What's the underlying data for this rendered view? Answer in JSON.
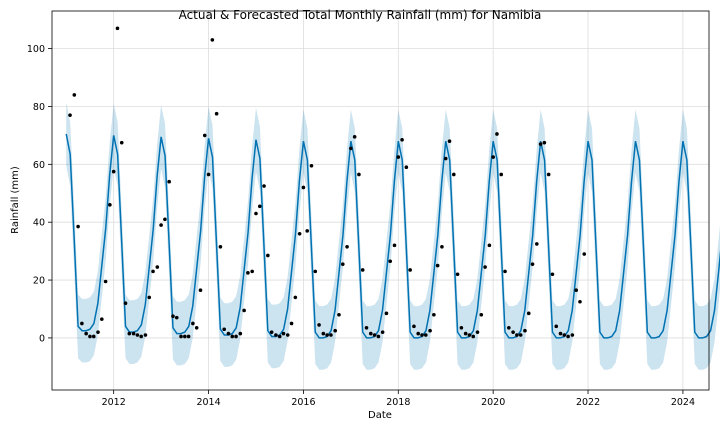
{
  "chart_data": {
    "type": "line",
    "title": "Actual & Forecasted Total Monthly Rainfall (mm) for Namibia",
    "xlabel": "Date",
    "ylabel": "Rainfall (mm)",
    "xlim": [
      2010.7,
      2024.55
    ],
    "ylim": [
      -18,
      113
    ],
    "x_ticks": [
      2012,
      2014,
      2016,
      2018,
      2020,
      2022,
      2024
    ],
    "y_ticks": [
      0,
      20,
      40,
      60,
      80,
      100
    ],
    "grid": true,
    "legend": "none",
    "colors": {
      "forecast": "#0072B2",
      "actual": "#000000"
    },
    "forecast_x_start": 2011.0,
    "forecast_x_step": 0.0833333,
    "forecast_yhat": [
      70.5,
      63.5,
      34.5,
      4,
      2.5,
      2.5,
      3,
      5,
      12,
      25,
      38,
      56.5,
      70,
      63.5,
      34,
      4,
      2,
      2,
      2.5,
      4.5,
      11.5,
      24.5,
      37.5,
      56,
      69.5,
      63,
      33.5,
      3.5,
      1.5,
      1.5,
      2,
      4,
      11,
      24,
      37,
      55.5,
      69,
      62.5,
      33,
      3,
      1,
      1,
      1.5,
      3.5,
      10.5,
      23.5,
      36.5,
      55,
      68.5,
      62,
      32.5,
      2.5,
      0.5,
      0.5,
      1,
      3,
      10,
      23,
      36,
      54.5,
      68,
      61.5,
      32,
      2,
      0,
      0,
      0.5,
      2.5,
      9.5,
      22.5,
      35.5,
      54,
      68,
      61.5,
      32,
      2,
      0,
      0,
      0.5,
      2.5,
      9.5,
      22.5,
      35.5,
      54,
      68,
      61.5,
      32,
      2,
      0,
      0,
      0.5,
      2.5,
      9.5,
      22.5,
      35.5,
      54,
      68,
      61.5,
      32,
      2,
      0,
      0,
      0.5,
      2.5,
      9.5,
      22.5,
      35.5,
      54,
      68,
      61.5,
      32,
      2,
      0,
      0,
      0.5,
      2.5,
      9.5,
      22.5,
      35.5,
      54,
      68,
      61.5,
      32,
      2,
      0,
      0,
      0.5,
      2.5,
      9.5,
      22.5,
      35.5,
      54,
      68,
      61.5,
      32,
      2,
      0,
      0,
      0.5,
      2.5,
      9.5,
      22.5,
      35.5,
      54,
      68,
      61.5,
      32,
      2,
      0,
      0,
      0.5,
      2.5,
      9.5,
      22.5,
      35.5,
      54,
      68,
      61.5,
      32,
      2,
      0,
      0,
      0.5,
      2.5,
      9.5,
      22.5,
      36.5
    ],
    "actual_points": [
      [
        2011.08,
        77
      ],
      [
        2011.17,
        84
      ],
      [
        2011.25,
        38.5
      ],
      [
        2011.33,
        5
      ],
      [
        2011.42,
        1.5
      ],
      [
        2011.5,
        0.5
      ],
      [
        2011.58,
        0.5
      ],
      [
        2011.67,
        2
      ],
      [
        2011.75,
        6.5
      ],
      [
        2011.83,
        19.5
      ],
      [
        2011.92,
        46
      ],
      [
        2012.0,
        57.5
      ],
      [
        2012.08,
        107
      ],
      [
        2012.17,
        67.5
      ],
      [
        2012.25,
        12
      ],
      [
        2012.33,
        1.5
      ],
      [
        2012.42,
        1.5
      ],
      [
        2012.5,
        1
      ],
      [
        2012.58,
        0.5
      ],
      [
        2012.67,
        1
      ],
      [
        2012.75,
        14
      ],
      [
        2012.83,
        23
      ],
      [
        2012.92,
        24.5
      ],
      [
        2013.0,
        39
      ],
      [
        2013.08,
        41
      ],
      [
        2013.17,
        54
      ],
      [
        2013.25,
        7.5
      ],
      [
        2013.33,
        7
      ],
      [
        2013.42,
        0.5
      ],
      [
        2013.5,
        0.5
      ],
      [
        2013.58,
        0.5
      ],
      [
        2013.67,
        5
      ],
      [
        2013.75,
        3.5
      ],
      [
        2013.83,
        16.5
      ],
      [
        2013.92,
        70
      ],
      [
        2014.0,
        56.5
      ],
      [
        2014.08,
        103
      ],
      [
        2014.17,
        77.5
      ],
      [
        2014.25,
        31.5
      ],
      [
        2014.33,
        3
      ],
      [
        2014.42,
        1.5
      ],
      [
        2014.5,
        0.5
      ],
      [
        2014.58,
        0.5
      ],
      [
        2014.67,
        1.5
      ],
      [
        2014.75,
        9.5
      ],
      [
        2014.83,
        22.5
      ],
      [
        2014.92,
        23
      ],
      [
        2015.0,
        43
      ],
      [
        2015.08,
        45.5
      ],
      [
        2015.17,
        52.5
      ],
      [
        2015.25,
        28.5
      ],
      [
        2015.33,
        2
      ],
      [
        2015.42,
        1
      ],
      [
        2015.5,
        0.5
      ],
      [
        2015.58,
        1.5
      ],
      [
        2015.67,
        1
      ],
      [
        2015.75,
        5
      ],
      [
        2015.83,
        14
      ],
      [
        2015.92,
        36
      ],
      [
        2016.0,
        52
      ],
      [
        2016.08,
        37
      ],
      [
        2016.17,
        59.5
      ],
      [
        2016.25,
        23
      ],
      [
        2016.33,
        4.5
      ],
      [
        2016.42,
        1.5
      ],
      [
        2016.5,
        1
      ],
      [
        2016.58,
        1
      ],
      [
        2016.67,
        2.5
      ],
      [
        2016.75,
        8
      ],
      [
        2016.83,
        25.5
      ],
      [
        2016.92,
        31.5
      ],
      [
        2017.0,
        65.5
      ],
      [
        2017.08,
        69.5
      ],
      [
        2017.17,
        56.5
      ],
      [
        2017.25,
        23.5
      ],
      [
        2017.33,
        3.5
      ],
      [
        2017.42,
        1.5
      ],
      [
        2017.5,
        1
      ],
      [
        2017.58,
        0.5
      ],
      [
        2017.67,
        2
      ],
      [
        2017.75,
        8.5
      ],
      [
        2017.83,
        26.5
      ],
      [
        2017.92,
        32
      ],
      [
        2018.0,
        62.5
      ],
      [
        2018.08,
        68.5
      ],
      [
        2018.17,
        59
      ],
      [
        2018.25,
        23.5
      ],
      [
        2018.33,
        4
      ],
      [
        2018.42,
        1.5
      ],
      [
        2018.5,
        1
      ],
      [
        2018.58,
        1
      ],
      [
        2018.67,
        2.5
      ],
      [
        2018.75,
        8
      ],
      [
        2018.83,
        25
      ],
      [
        2018.92,
        31.5
      ],
      [
        2019.0,
        62
      ],
      [
        2019.08,
        68
      ],
      [
        2019.17,
        56.5
      ],
      [
        2019.25,
        22
      ],
      [
        2019.33,
        3.5
      ],
      [
        2019.42,
        1.5
      ],
      [
        2019.5,
        1
      ],
      [
        2019.58,
        0.5
      ],
      [
        2019.67,
        2
      ],
      [
        2019.75,
        8
      ],
      [
        2019.83,
        24.5
      ],
      [
        2019.92,
        32
      ],
      [
        2020.0,
        62.5
      ],
      [
        2020.08,
        70.5
      ],
      [
        2020.17,
        56.5
      ],
      [
        2020.25,
        23
      ],
      [
        2020.33,
        3.5
      ],
      [
        2020.42,
        2
      ],
      [
        2020.5,
        1
      ],
      [
        2020.58,
        1
      ],
      [
        2020.67,
        2.5
      ],
      [
        2020.75,
        8.5
      ],
      [
        2020.83,
        25.5
      ],
      [
        2020.92,
        32.5
      ],
      [
        2021.0,
        67
      ],
      [
        2021.08,
        67.5
      ],
      [
        2021.17,
        56.5
      ],
      [
        2021.25,
        22
      ],
      [
        2021.33,
        4
      ],
      [
        2021.42,
        1.5
      ],
      [
        2021.5,
        1
      ],
      [
        2021.58,
        0.5
      ],
      [
        2021.67,
        1
      ],
      [
        2021.75,
        16.5
      ],
      [
        2021.83,
        12.5
      ],
      [
        2021.92,
        29
      ]
    ]
  }
}
